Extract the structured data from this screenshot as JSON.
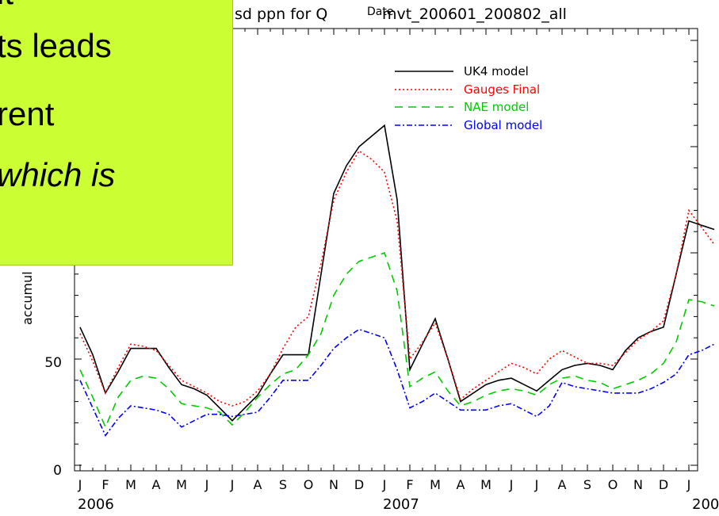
{
  "chart_data": {
    "type": "line",
    "title": "sd ppn for Q",
    "title_suffix": "mvt_200601_200802_all",
    "title_overlap": "Date",
    "ylabel": "accumul",
    "month_labels": [
      "J",
      "F",
      "M",
      "A",
      "M",
      "J",
      "J",
      "A",
      "S",
      "O",
      "N",
      "D",
      "J",
      "F",
      "M",
      "A",
      "M",
      "J",
      "J",
      "A",
      "S",
      "O",
      "N",
      "D",
      "J"
    ],
    "year_labels": [
      "2006",
      "2007",
      "200"
    ],
    "ylim": [
      0,
      150
    ],
    "y_ticks": [
      0,
      50
    ],
    "x": [
      0,
      0.5,
      1,
      1.5,
      2,
      2.5,
      3,
      3.5,
      4,
      4.5,
      5,
      5.5,
      6,
      6.5,
      7,
      7.5,
      8,
      8.5,
      9,
      9.5,
      10,
      10.5,
      11,
      11.5,
      12,
      12.5,
      13,
      13.5,
      14,
      14.5,
      15,
      15.5,
      16,
      16.5,
      17,
      17.5,
      18,
      18.5,
      19,
      19.5,
      20,
      20.5,
      21,
      21.5,
      22,
      22.5,
      23,
      23.5,
      24,
      24.5,
      25
    ],
    "series": [
      {
        "name": "UK4 model",
        "color": "#000000",
        "dash": "solid",
        "values": [
          65,
          52,
          34,
          44,
          55,
          55,
          55,
          46,
          38,
          36,
          33,
          27,
          21,
          27,
          33,
          43,
          52,
          52,
          52,
          90,
          128,
          141,
          150,
          155,
          160,
          125,
          45,
          57,
          69,
          50,
          30,
          34,
          38,
          40,
          41,
          38,
          35,
          40,
          45,
          47,
          48,
          47,
          45,
          54,
          60,
          63,
          65,
          90,
          115,
          113,
          111
        ]
      },
      {
        "name": "Gauges Final",
        "color": "#ff0000",
        "dash": "dot",
        "values": [
          62,
          49,
          34,
          46,
          57,
          56,
          54,
          47,
          40,
          37,
          34,
          30,
          28,
          30,
          35,
          43,
          55,
          65,
          70,
          95,
          125,
          138,
          148,
          144,
          138,
          115,
          50,
          58,
          67,
          50,
          31,
          36,
          40,
          44,
          48,
          46,
          43,
          50,
          54,
          51,
          48,
          48,
          47,
          53,
          59,
          63,
          68,
          90,
          120,
          112,
          104
        ]
      },
      {
        "name": "NAE model",
        "color": "#00cc00",
        "dash": "dash",
        "values": [
          45,
          32,
          18,
          32,
          40,
          42,
          41,
          36,
          29,
          28,
          27,
          25,
          19,
          25,
          32,
          38,
          43,
          45,
          52,
          62,
          80,
          90,
          96,
          98,
          100,
          82,
          37,
          41,
          44,
          35,
          28,
          30,
          33,
          35,
          36,
          35,
          33,
          38,
          41,
          42,
          40,
          39,
          36,
          38,
          40,
          43,
          48,
          58,
          78,
          77,
          75
        ]
      },
      {
        "name": "Global model",
        "color": "#0000ff",
        "dash": "dashdot",
        "values": [
          40,
          27,
          14,
          22,
          28,
          27,
          26,
          24,
          18,
          21,
          24,
          24,
          23,
          24,
          25,
          32,
          40,
          40,
          40,
          47,
          55,
          60,
          64,
          62,
          60,
          45,
          27,
          30,
          34,
          30,
          26,
          26,
          26,
          28,
          29,
          26,
          23,
          28,
          39,
          37,
          36,
          35,
          34,
          34,
          34,
          36,
          39,
          43,
          52,
          54,
          57
        ]
      }
    ],
    "grid": false,
    "legend_position": "top-center"
  },
  "overlay": {
    "lines": [
      "it",
      "ts leads",
      "rent",
      "which is"
    ]
  }
}
